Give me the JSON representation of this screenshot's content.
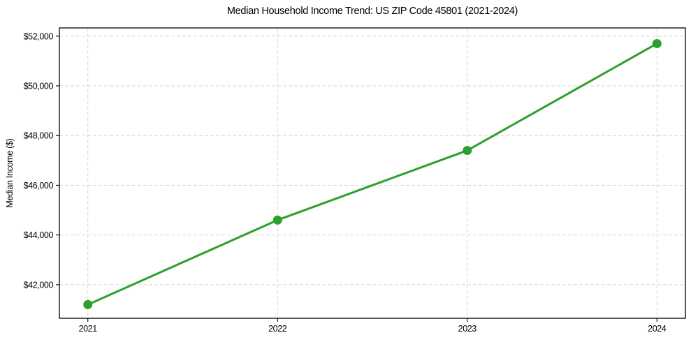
{
  "chart_data": {
    "type": "line",
    "title": "Median Household Income Trend: US ZIP Code 45801 (2021-2024)",
    "xlabel": "",
    "ylabel": "Median Income ($)",
    "x": [
      2021,
      2022,
      2023,
      2024
    ],
    "series": [
      {
        "name": "Median Household Income",
        "values": [
          41200,
          44600,
          47400,
          51700
        ]
      }
    ],
    "xticks": [
      2021,
      2022,
      2023,
      2024
    ],
    "xtick_labels": [
      "2021",
      "2022",
      "2023",
      "2024"
    ],
    "yticks": [
      42000,
      44000,
      46000,
      48000,
      50000,
      52000
    ],
    "ytick_labels": [
      "$42,000",
      "$44,000",
      "$46,000",
      "$48,000",
      "$50,000",
      "$52,000"
    ],
    "xlim": [
      2020.85,
      2024.15
    ],
    "ylim": [
      40650,
      52330
    ],
    "grid": true,
    "grid_style": "dashed",
    "legend_position": "none",
    "colors": {
      "line": "#2ca02c",
      "marker": "#2ca02c",
      "grid": "#d6d6d6",
      "spine": "#000000",
      "text": "#000000",
      "background": "#ffffff"
    }
  }
}
